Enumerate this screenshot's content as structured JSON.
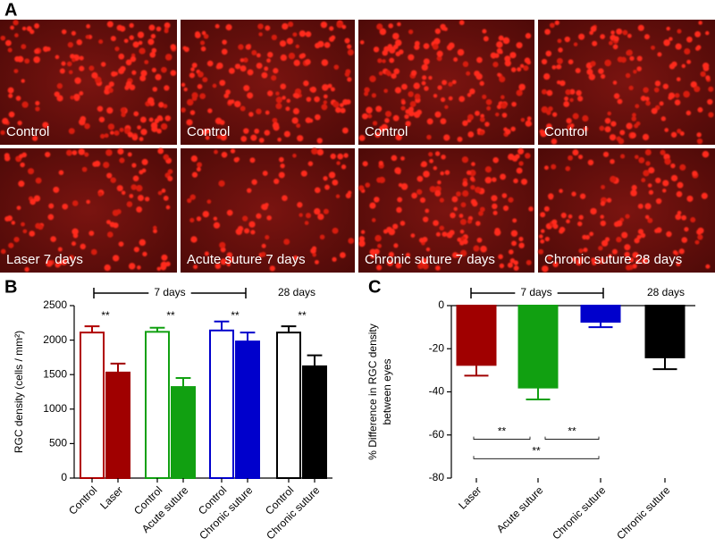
{
  "panel_labels": [
    "A",
    "B",
    "C"
  ],
  "images": [
    {
      "caption": "Control"
    },
    {
      "caption": "Control"
    },
    {
      "caption": "Control"
    },
    {
      "caption": "Control"
    },
    {
      "caption": "Laser 7 days"
    },
    {
      "caption": "Acute suture 7 days"
    },
    {
      "caption": "Chronic suture 7 days"
    },
    {
      "caption": "Chronic suture 28 days"
    }
  ],
  "chart_data": [
    {
      "type": "bar",
      "ylabel": [
        "RGC density (cells / mm²)"
      ],
      "categories": [
        "Control",
        "Laser",
        "Control",
        "Acute suture",
        "Control",
        "Chronic suture",
        "Control",
        "Chronic suture"
      ],
      "values": [
        2110,
        1530,
        2120,
        1320,
        2140,
        1980,
        2110,
        1620
      ],
      "errors": [
        90,
        130,
        60,
        130,
        130,
        130,
        90,
        160
      ],
      "colors": [
        "#b00000",
        "#a00000",
        "#11a011",
        "#11a011",
        "#0000cc",
        "#0000cc",
        "#000000",
        "#000000"
      ],
      "filled": [
        false,
        true,
        false,
        true,
        false,
        true,
        false,
        true
      ],
      "ylim": [
        0,
        2500
      ],
      "yticks": [
        0,
        500,
        1000,
        1500,
        2000,
        2500
      ],
      "significance": [
        "**",
        "**",
        "**",
        "**"
      ],
      "periods": [
        "7 days",
        "28 days"
      ]
    },
    {
      "type": "bar",
      "ylabel": [
        "% Difference in RGC density",
        "between eyes"
      ],
      "categories": [
        "Laser",
        "Acute suture",
        "Chronic suture",
        "Chronic suture"
      ],
      "values": [
        -27.5,
        -38,
        -7.5,
        -24
      ],
      "errors": [
        5,
        5.5,
        2.5,
        5.5
      ],
      "colors": [
        "#a00000",
        "#11a011",
        "#0000cc",
        "#000000"
      ],
      "filled": [
        true,
        true,
        true,
        true
      ],
      "ylim": [
        -80,
        0
      ],
      "yticks": [
        -80,
        -60,
        -40,
        -20,
        0
      ],
      "comparisons": [
        {
          "label": "**",
          "y": -62
        },
        {
          "label": "**",
          "y": -62
        },
        {
          "label": "**",
          "y": -71
        }
      ],
      "periods": [
        "7 days",
        "28 days"
      ]
    }
  ]
}
